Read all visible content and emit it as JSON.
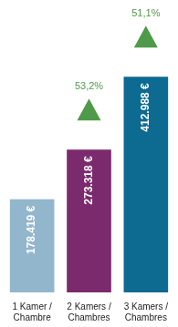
{
  "chart_data": {
    "type": "bar",
    "categories": [
      [
        "1 Kamer /",
        "Chambre"
      ],
      [
        "2 Kamers /",
        "Chambres"
      ],
      [
        "3 Kamers /",
        "Chambres"
      ]
    ],
    "values": [
      178419,
      273318,
      412988
    ],
    "value_labels": [
      "178.419 €",
      "273.318 €",
      "412.988 €"
    ],
    "colors": [
      "#92b6cb",
      "#7b2a6e",
      "#0d6a90"
    ],
    "data_labels": true,
    "growth": [
      null,
      53.2,
      51.1
    ],
    "growth_labels": [
      null,
      "53,2%",
      "51,1%"
    ],
    "growth_color": "#4f9a48",
    "ylim": [
      0,
      560000
    ],
    "grid": false,
    "tick_labels": "x"
  }
}
